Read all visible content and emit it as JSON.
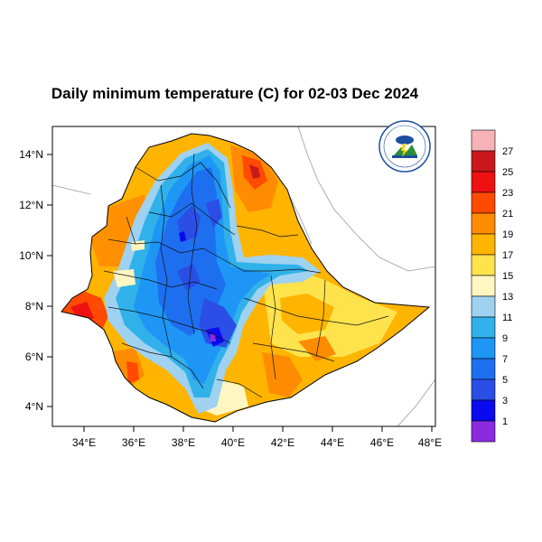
{
  "title": "Daily minimum temperature (C) for 02-03 Dec 2024",
  "lat_ticks": [
    "14°N",
    "12°N",
    "10°N",
    "8°N",
    "6°N",
    "4°N"
  ],
  "lon_ticks": [
    "34°E",
    "36°E",
    "38°E",
    "40°E",
    "42°E",
    "44°E",
    "46°E",
    "48°E"
  ],
  "colorbar": {
    "labels": [
      "27",
      "25",
      "23",
      "21",
      "19",
      "17",
      "15",
      "13",
      "11",
      "9",
      "7",
      "5",
      "3",
      "1"
    ],
    "colors": [
      "#f7b3b8",
      "#c8181c",
      "#ee1111",
      "#ff4a00",
      "#ff8c00",
      "#ffb400",
      "#ffe34d",
      "#fff6c2",
      "#9ed2f0",
      "#31b1ea",
      "#1e96f5",
      "#1e6ff0",
      "#2a4ee6",
      "#0a0af0",
      "#8a2be2"
    ]
  },
  "logo": {
    "icon": "meteorology-agency-logo-icon"
  }
}
